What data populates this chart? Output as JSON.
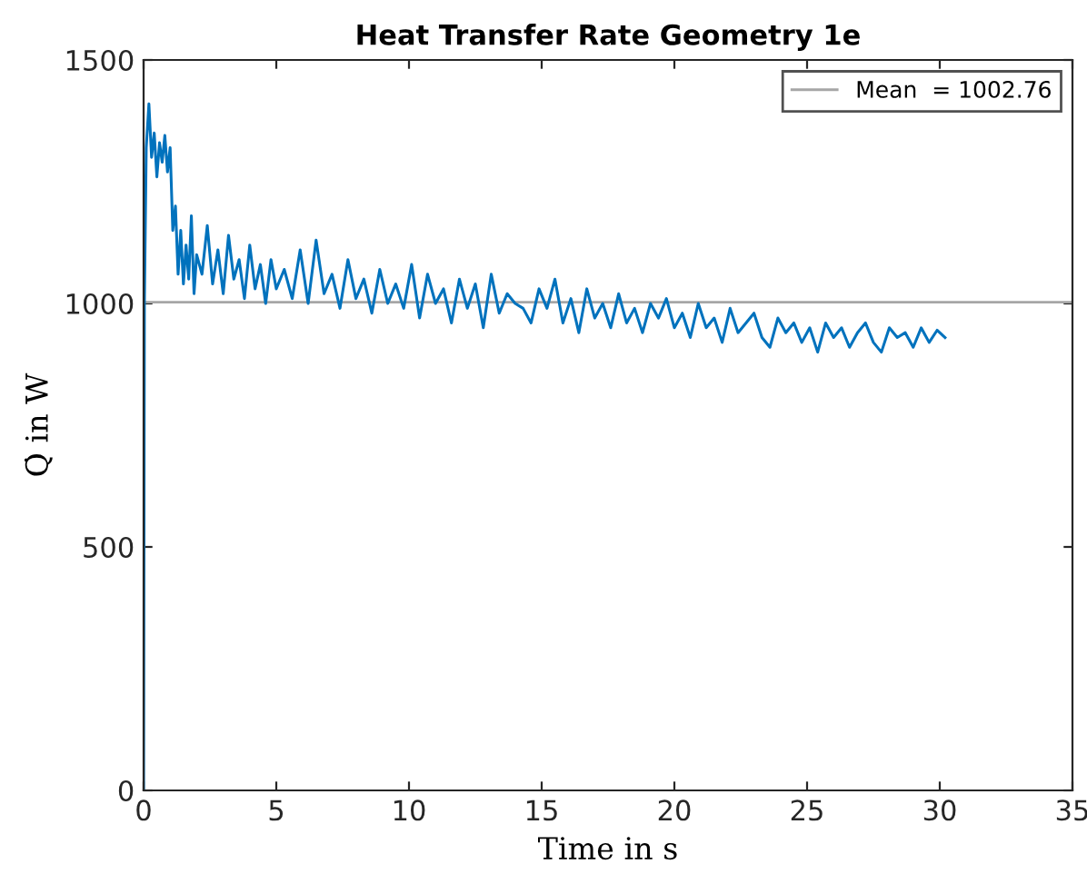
{
  "chart_data": {
    "type": "line",
    "title": "Heat Transfer Rate Geometry 1e",
    "xlabel": "Time in s",
    "ylabel": "Q̇ in W",
    "xlim": [
      0,
      35
    ],
    "ylim": [
      0,
      1500
    ],
    "xticks": [
      0,
      5,
      10,
      15,
      20,
      25,
      30,
      35
    ],
    "yticks": [
      0,
      500,
      1000,
      1500
    ],
    "grid": false,
    "legend": "top right",
    "series": [
      {
        "color": "#0072bd",
        "x": [
          0,
          0.03,
          0.1,
          0.2,
          0.3,
          0.4,
          0.5,
          0.6,
          0.7,
          0.8,
          0.9,
          1.0,
          1.1,
          1.2,
          1.3,
          1.4,
          1.5,
          1.6,
          1.7,
          1.8,
          1.9,
          2.0,
          2.2,
          2.4,
          2.6,
          2.8,
          3.0,
          3.2,
          3.4,
          3.6,
          3.8,
          4.0,
          4.2,
          4.4,
          4.6,
          4.8,
          5.0,
          5.3,
          5.6,
          5.9,
          6.2,
          6.5,
          6.8,
          7.1,
          7.4,
          7.7,
          8.0,
          8.3,
          8.6,
          8.9,
          9.2,
          9.5,
          9.8,
          10.1,
          10.4,
          10.7,
          11.0,
          11.3,
          11.6,
          11.9,
          12.2,
          12.5,
          12.8,
          13.1,
          13.4,
          13.7,
          14.0,
          14.3,
          14.6,
          14.9,
          15.2,
          15.5,
          15.8,
          16.1,
          16.4,
          16.7,
          17.0,
          17.3,
          17.6,
          17.9,
          18.2,
          18.5,
          18.8,
          19.1,
          19.4,
          19.7,
          20.0,
          20.3,
          20.6,
          20.9,
          21.2,
          21.5,
          21.8,
          22.1,
          22.4,
          22.7,
          23.0,
          23.3,
          23.6,
          23.9,
          24.2,
          24.5,
          24.8,
          25.1,
          25.4,
          25.7,
          26.0,
          26.3,
          26.6,
          26.9,
          27.2,
          27.5,
          27.8,
          28.1,
          28.4,
          28.7,
          29.0,
          29.3,
          29.6,
          29.9,
          30.2
        ],
        "values": [
          0,
          1000,
          1320,
          1410,
          1300,
          1350,
          1260,
          1330,
          1290,
          1345,
          1270,
          1320,
          1150,
          1200,
          1060,
          1150,
          1040,
          1120,
          1050,
          1180,
          1020,
          1100,
          1060,
          1160,
          1040,
          1110,
          1020,
          1140,
          1050,
          1090,
          1010,
          1120,
          1030,
          1080,
          1000,
          1090,
          1030,
          1070,
          1010,
          1110,
          1000,
          1130,
          1020,
          1060,
          990,
          1090,
          1010,
          1050,
          980,
          1070,
          1000,
          1040,
          990,
          1080,
          970,
          1060,
          1000,
          1030,
          960,
          1050,
          990,
          1040,
          950,
          1060,
          980,
          1020,
          1000,
          990,
          960,
          1030,
          990,
          1050,
          960,
          1010,
          940,
          1030,
          970,
          1000,
          950,
          1020,
          960,
          990,
          940,
          1000,
          970,
          1010,
          950,
          980,
          930,
          1000,
          950,
          970,
          920,
          990,
          940,
          960,
          980,
          930,
          910,
          970,
          940,
          960,
          920,
          950,
          900,
          960,
          930,
          950,
          910,
          940,
          960,
          920,
          900,
          950,
          930,
          940,
          910,
          950,
          920,
          945,
          930
        ],
        "line_style": "solid",
        "marker": "none"
      }
    ],
    "ref_lines": [
      {
        "axis": "y",
        "value": 1002.76,
        "label": "Mean  = 1002.76",
        "color": "#a6a6a6",
        "line_style": "solid"
      }
    ]
  }
}
